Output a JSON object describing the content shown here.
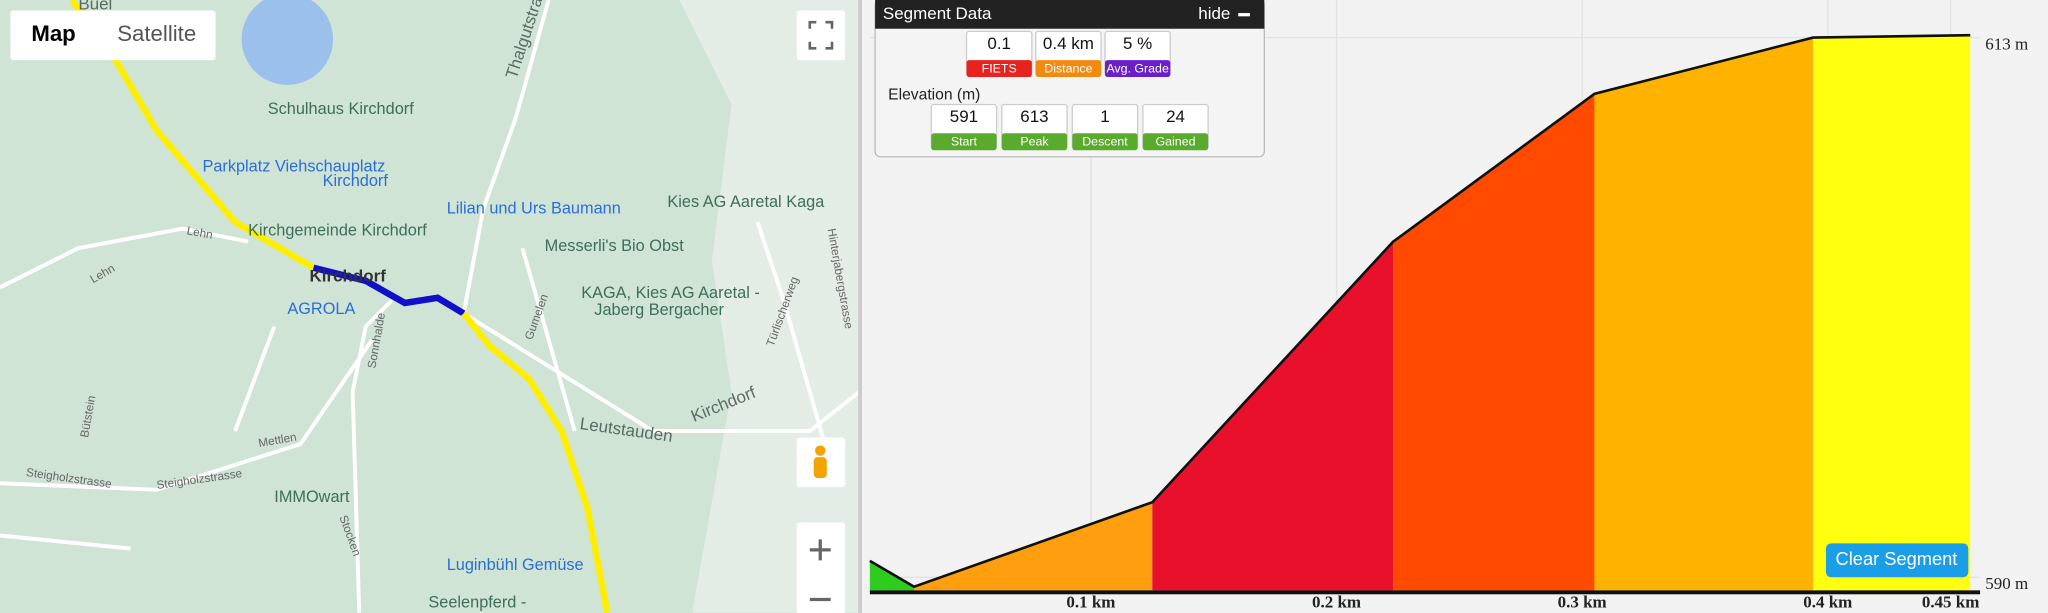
{
  "map": {
    "buttons": [
      "Map",
      "Satellite"
    ],
    "labels": [
      "Büel",
      "Schulhaus Kirchdorf",
      "Parkplatz Viehschauplatz",
      "Kirchdorf",
      "Kirchgemeinde Kirchdorf",
      "Kirchdorf",
      "AGROLA",
      "Lilian und Urs Baumann",
      "Messerli's Bio Obst",
      "Kies AG Aaretal Kaga",
      "KAGA, Kies AG Aaretal -",
      "Jaberg Bergacher",
      "IMMOwart",
      "Luginbühl Gemüse",
      "Seelenpferd -",
      "Thalgutstrasse",
      "Lehn",
      "Lehn",
      "Leutstauden",
      "Kirchdorf",
      "Mettlen",
      "Steigholzstrasse",
      "Steigholzstrasse",
      "Gumelen",
      "Sonnhalde",
      "Bütstein",
      "Hinterjabergstrasse",
      "Türlischerweg",
      "Stocken"
    ]
  },
  "segment_panel": {
    "title": "Segment Data",
    "hide": "hide",
    "stats": [
      {
        "value": "0.1",
        "label": "FIETS"
      },
      {
        "value": "0.4 km",
        "label": "Distance"
      },
      {
        "value": "5 %",
        "label": "Avg. Grade"
      }
    ],
    "elevation_title": "Elevation (m)",
    "elevation_stats": [
      {
        "value": "591",
        "label": "Start"
      },
      {
        "value": "613",
        "label": "Peak"
      },
      {
        "value": "1",
        "label": "Descent"
      },
      {
        "value": "24",
        "label": "Gained"
      }
    ]
  },
  "chart_data": {
    "type": "area",
    "x": [
      0.01,
      0.028,
      0.125,
      0.223,
      0.305,
      0.394,
      0.458
    ],
    "values": [
      590.7,
      589.6,
      593.2,
      604.3,
      610.6,
      613,
      613.1
    ],
    "colors": [
      "#2ecc1f",
      "#ff9f0f",
      "#e8102a",
      "#ff4a00",
      "#ffb300",
      "#ffff10"
    ],
    "xlim": [
      0.01,
      0.462
    ],
    "xticks": [
      {
        "value": 0.1,
        "label": "0.1 km"
      },
      {
        "value": 0.2,
        "label": "0.2 km"
      },
      {
        "value": 0.3,
        "label": "0.3 km"
      },
      {
        "value": 0.4,
        "label": "0.4 km"
      },
      {
        "value": 0.45,
        "label": "0.45 km"
      }
    ],
    "ylim": [
      589.4,
      614.6
    ],
    "yticks": [
      {
        "value": 613,
        "label": "613 m"
      },
      {
        "value": 590,
        "label": "590 m"
      }
    ]
  },
  "clear_button": "Clear Segment"
}
